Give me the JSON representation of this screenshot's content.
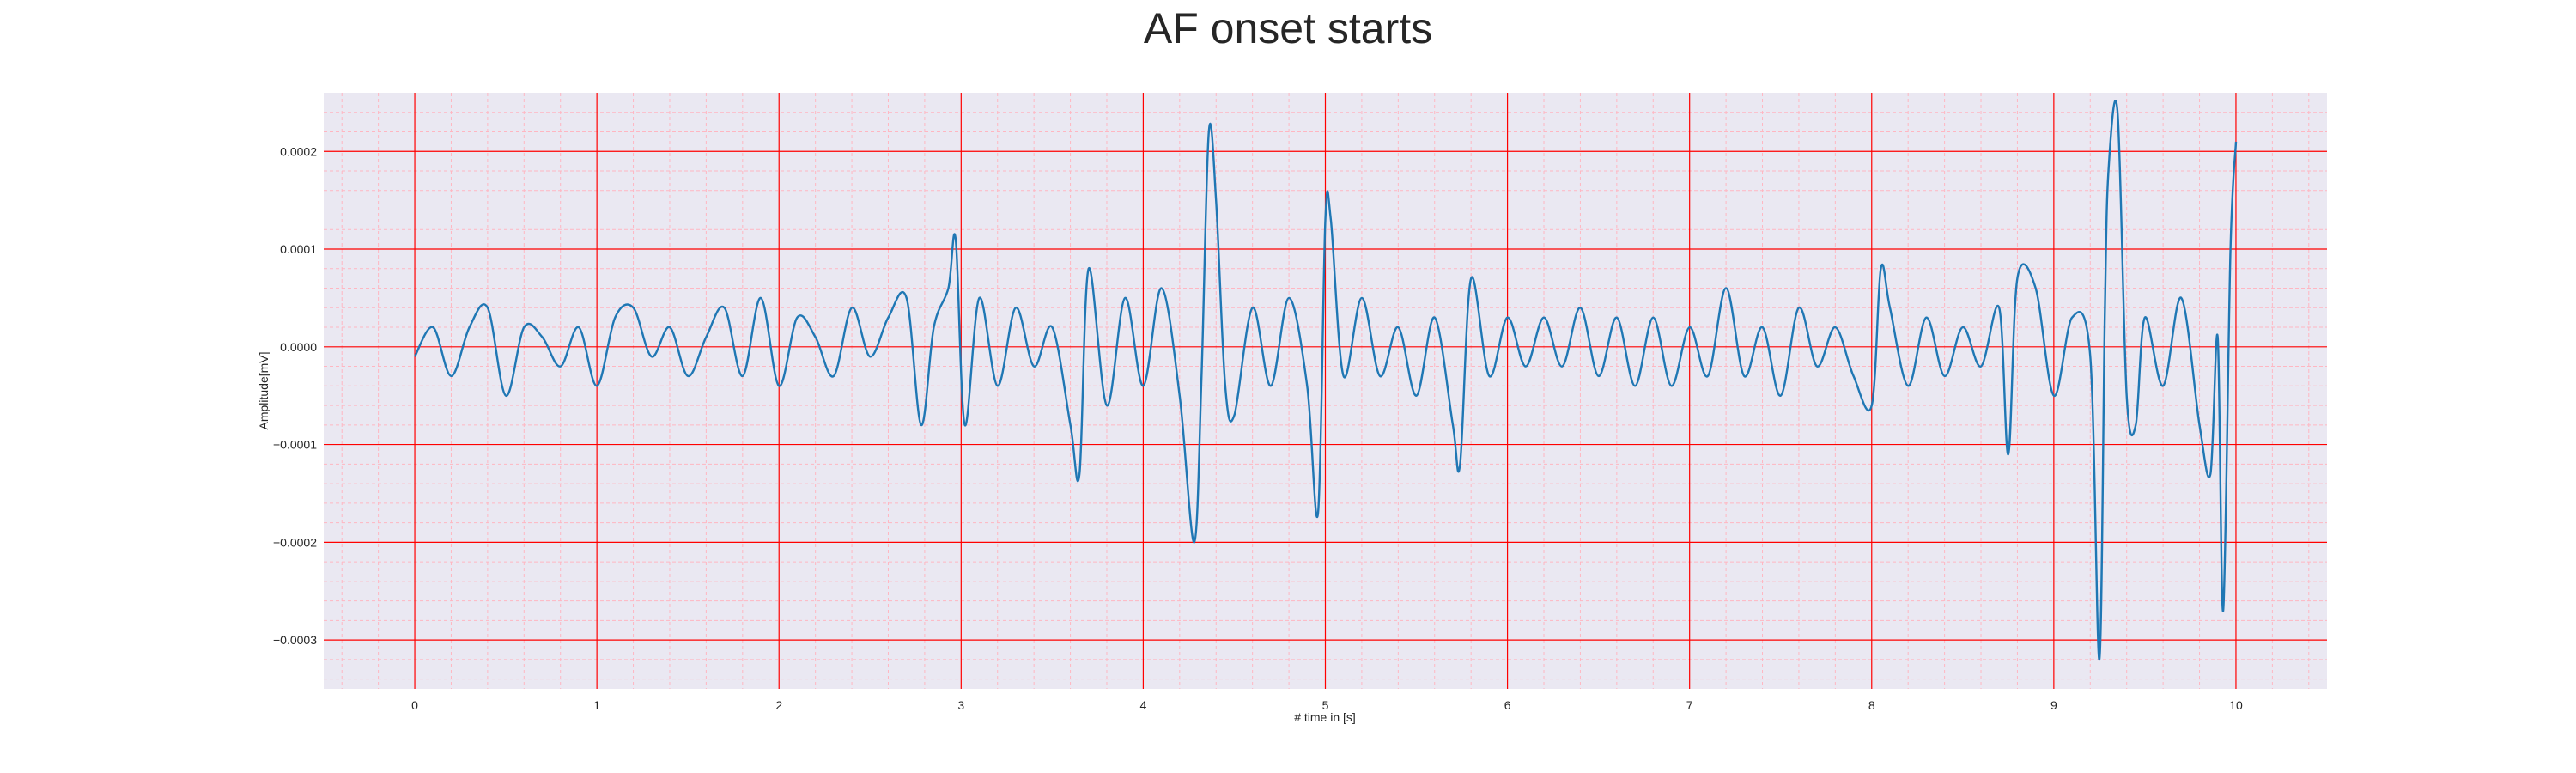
{
  "chart_data": {
    "type": "line",
    "title": "AF onset starts",
    "xlabel": "# time in [s]",
    "ylabel": "Amplitude[mV]",
    "xlim": [
      -0.5,
      10.5
    ],
    "ylim": [
      -0.00035,
      0.00026
    ],
    "xticks": [
      0,
      1,
      2,
      3,
      4,
      5,
      6,
      7,
      8,
      9,
      10
    ],
    "xtick_labels": [
      "0",
      "1",
      "2",
      "3",
      "4",
      "5",
      "6",
      "7",
      "8",
      "9",
      "10"
    ],
    "yticks": [
      -0.0003,
      -0.0002,
      -0.0001,
      0,
      0.0001,
      0.0002
    ],
    "ytick_labels": [
      "−0.0003",
      "−0.0002",
      "−0.0001",
      "0.0000",
      "0.0001",
      "0.0002"
    ],
    "grid": true,
    "minor_grid": true,
    "colors": {
      "line": "#1f77b4",
      "background": "#eae8f2",
      "major_grid": "#ff0000",
      "minor_grid": "#ffb6c1"
    },
    "series": [
      {
        "x": [
          0.0,
          0.1,
          0.2,
          0.3,
          0.4,
          0.5,
          0.6,
          0.7,
          0.8,
          0.9,
          1.0,
          1.1,
          1.2,
          1.3,
          1.4,
          1.5,
          1.6,
          1.7,
          1.8,
          1.9,
          2.0,
          2.1,
          2.2,
          2.3,
          2.4,
          2.5,
          2.6,
          2.7,
          2.78,
          2.85,
          2.93,
          2.97,
          3.02,
          3.1,
          3.2,
          3.3,
          3.4,
          3.5,
          3.6,
          3.65,
          3.7,
          3.8,
          3.9,
          4.0,
          4.1,
          4.2,
          4.28,
          4.32,
          4.36,
          4.4,
          4.45,
          4.5,
          4.6,
          4.7,
          4.8,
          4.9,
          4.96,
          5.0,
          5.03,
          5.1,
          5.2,
          5.3,
          5.4,
          5.5,
          5.6,
          5.7,
          5.74,
          5.8,
          5.9,
          6.0,
          6.1,
          6.2,
          6.3,
          6.4,
          6.5,
          6.6,
          6.7,
          6.8,
          6.9,
          7.0,
          7.1,
          7.2,
          7.3,
          7.4,
          7.5,
          7.6,
          7.7,
          7.8,
          7.9,
          8.0,
          8.05,
          8.1,
          8.2,
          8.3,
          8.4,
          8.5,
          8.6,
          8.7,
          8.75,
          8.8,
          8.9,
          9.0,
          9.1,
          9.2,
          9.25,
          9.28,
          9.3,
          9.35,
          9.4,
          9.45,
          9.5,
          9.6,
          9.7,
          9.8,
          9.86,
          9.9,
          9.93,
          9.97,
          10.0
        ],
        "y": [
          -1e-05,
          2e-05,
          -3e-05,
          2e-05,
          4e-05,
          -5e-05,
          2e-05,
          1e-05,
          -2e-05,
          2e-05,
          -4e-05,
          3e-05,
          4e-05,
          -1e-05,
          2e-05,
          -3e-05,
          1e-05,
          4e-05,
          -3e-05,
          5e-05,
          -4e-05,
          3e-05,
          1e-05,
          -3e-05,
          4e-05,
          -1e-05,
          3e-05,
          5e-05,
          -8e-05,
          2e-05,
          6e-05,
          0.00011,
          -8e-05,
          5e-05,
          -4e-05,
          4e-05,
          -2e-05,
          2e-05,
          -8e-05,
          -0.00013,
          8e-05,
          -6e-05,
          5e-05,
          -4e-05,
          6e-05,
          -5e-05,
          -0.0002,
          -3e-05,
          0.00022,
          0.00015,
          -4e-05,
          -7e-05,
          4e-05,
          -4e-05,
          5e-05,
          -4e-05,
          -0.00017,
          0.00013,
          0.00013,
          -3e-05,
          5e-05,
          -3e-05,
          2e-05,
          -5e-05,
          3e-05,
          -8e-05,
          -0.00012,
          7e-05,
          -3e-05,
          3e-05,
          -2e-05,
          3e-05,
          -2e-05,
          4e-05,
          -3e-05,
          3e-05,
          -4e-05,
          3e-05,
          -4e-05,
          2e-05,
          -3e-05,
          6e-05,
          -3e-05,
          2e-05,
          -5e-05,
          4e-05,
          -2e-05,
          2e-05,
          -3e-05,
          -6e-05,
          8e-05,
          4e-05,
          -4e-05,
          3e-05,
          -3e-05,
          2e-05,
          -2e-05,
          4e-05,
          -0.00011,
          7e-05,
          6e-05,
          -5e-05,
          3e-05,
          -1e-05,
          -0.00032,
          3e-05,
          0.00018,
          0.00024,
          -5e-05,
          -8e-05,
          3e-05,
          -4e-05,
          5e-05,
          -8e-05,
          -0.00013,
          1e-05,
          -0.00027,
          0.0001,
          0.00021
        ]
      }
    ]
  }
}
